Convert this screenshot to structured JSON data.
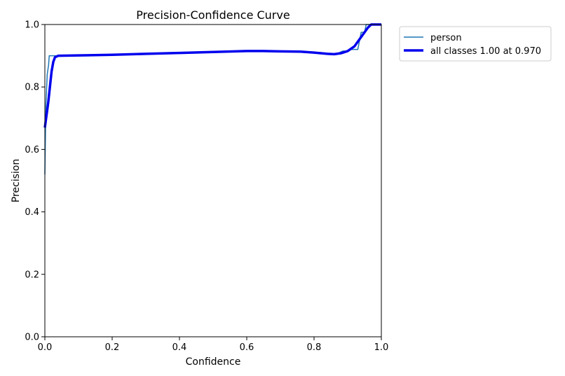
{
  "chart_data": {
    "type": "line",
    "title": "Precision-Confidence Curve",
    "xlabel": "Confidence",
    "ylabel": "Precision",
    "xlim": [
      0.0,
      1.0
    ],
    "ylim": [
      0.0,
      1.0
    ],
    "x_ticks": [
      "0.0",
      "0.2",
      "0.4",
      "0.6",
      "0.8",
      "1.0"
    ],
    "y_ticks": [
      "0.0",
      "0.2",
      "0.4",
      "0.6",
      "0.8",
      "1.0"
    ],
    "grid": false,
    "legend": "outside-top-right",
    "series": [
      {
        "name": "person",
        "color": "#1f77b4",
        "points": [
          [
            0.0,
            0.52
          ],
          [
            0.003,
            0.74
          ],
          [
            0.007,
            0.84
          ],
          [
            0.011,
            0.87
          ],
          [
            0.013,
            0.9
          ],
          [
            0.1,
            0.9
          ],
          [
            0.3,
            0.907
          ],
          [
            0.5,
            0.913
          ],
          [
            0.62,
            0.915
          ],
          [
            0.7,
            0.915
          ],
          [
            0.76,
            0.914
          ],
          [
            0.82,
            0.91
          ],
          [
            0.855,
            0.906
          ],
          [
            0.87,
            0.907
          ],
          [
            0.885,
            0.915
          ],
          [
            0.9,
            0.915
          ],
          [
            0.905,
            0.92
          ],
          [
            0.93,
            0.92
          ],
          [
            0.94,
            0.975
          ],
          [
            0.95,
            0.975
          ],
          [
            0.955,
            1.0
          ],
          [
            1.0,
            1.0
          ]
        ]
      },
      {
        "name": "all classes 1.00 at 0.970",
        "color": "#0000ee",
        "points": [
          [
            0.0,
            0.67
          ],
          [
            0.005,
            0.71
          ],
          [
            0.01,
            0.75
          ],
          [
            0.015,
            0.8
          ],
          [
            0.02,
            0.85
          ],
          [
            0.025,
            0.88
          ],
          [
            0.03,
            0.895
          ],
          [
            0.04,
            0.9
          ],
          [
            0.1,
            0.901
          ],
          [
            0.2,
            0.903
          ],
          [
            0.3,
            0.906
          ],
          [
            0.4,
            0.909
          ],
          [
            0.5,
            0.912
          ],
          [
            0.6,
            0.915
          ],
          [
            0.65,
            0.915
          ],
          [
            0.7,
            0.914
          ],
          [
            0.76,
            0.913
          ],
          [
            0.8,
            0.91
          ],
          [
            0.84,
            0.906
          ],
          [
            0.86,
            0.905
          ],
          [
            0.88,
            0.908
          ],
          [
            0.9,
            0.915
          ],
          [
            0.92,
            0.93
          ],
          [
            0.94,
            0.96
          ],
          [
            0.96,
            0.99
          ],
          [
            0.97,
            1.0
          ],
          [
            1.0,
            1.0
          ]
        ]
      }
    ]
  }
}
